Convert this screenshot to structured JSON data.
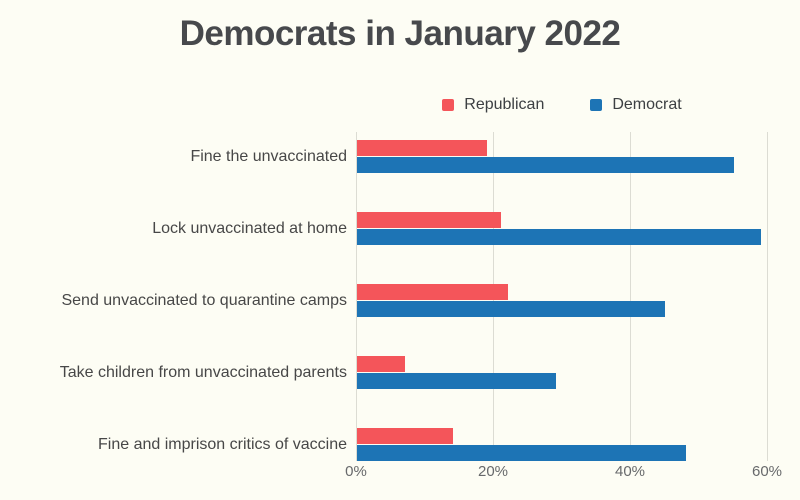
{
  "title": "Democrats in January 2022",
  "legend": {
    "items": [
      {
        "label": "Republican",
        "color": "#f4555a"
      },
      {
        "label": "Democrat",
        "color": "#1d74b5"
      }
    ]
  },
  "chart_data": {
    "type": "bar",
    "orientation": "horizontal",
    "title": "Democrats in January 2022",
    "categories": [
      "Fine the unvaccinated",
      "Lock unvaccinated at home",
      "Send unvaccinated to quarantine camps",
      "Take children from unvaccinated parents",
      "Fine and imprison critics of vaccine"
    ],
    "series": [
      {
        "name": "Republican",
        "color": "#f4555a",
        "values": [
          19,
          21,
          22,
          7,
          14
        ]
      },
      {
        "name": "Democrat",
        "color": "#1d74b5",
        "values": [
          55,
          59,
          45,
          29,
          48
        ]
      }
    ],
    "unit": "%",
    "x_axis": {
      "tick_values": [
        0,
        20,
        40,
        60
      ],
      "tick_labels": [
        "0%",
        "20%",
        "40%",
        "60%"
      ],
      "range": [
        0,
        63
      ]
    },
    "grid": true,
    "legend_position": "top",
    "background_color": "#fdfdf4"
  }
}
